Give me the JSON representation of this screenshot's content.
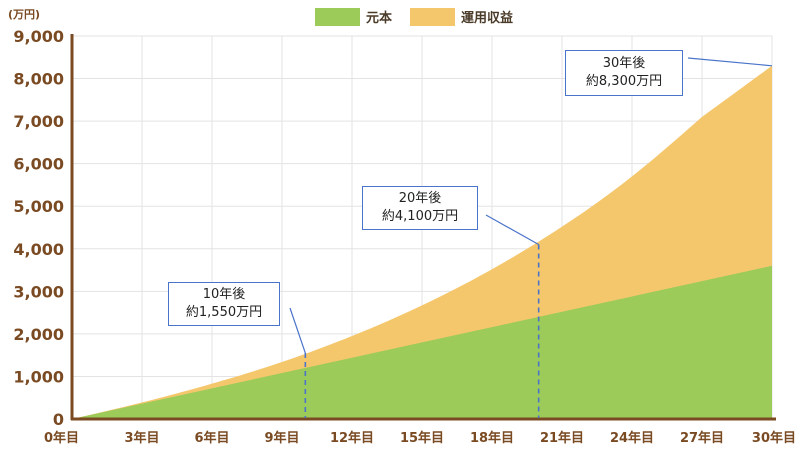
{
  "chart_data": {
    "type": "area",
    "unit_label": "(万円)",
    "categories": [
      "0年目",
      "3年目",
      "6年目",
      "9年目",
      "12年目",
      "15年目",
      "18年目",
      "21年目",
      "24年目",
      "27年目",
      "30年目"
    ],
    "x": [
      0,
      3,
      6,
      9,
      12,
      15,
      18,
      21,
      24,
      27,
      30
    ],
    "ylim": [
      0,
      9000
    ],
    "yticks": [
      0,
      1000,
      2000,
      3000,
      4000,
      5000,
      6000,
      7000,
      8000,
      9000
    ],
    "ytick_labels": [
      "0",
      "1,000",
      "2,000",
      "3,000",
      "4,000",
      "5,000",
      "6,000",
      "7,000",
      "8,000",
      "9,000"
    ],
    "legend_position": "top-center",
    "grid": true,
    "series": [
      {
        "name": "元本",
        "color": "#9ccb5a",
        "values": [
          0,
          360,
          720,
          1080,
          1440,
          1800,
          2160,
          2520,
          2880,
          3240,
          3600
        ]
      },
      {
        "name": "運用収益",
        "color": "#f5c76c",
        "total_values": [
          0,
          390,
          830,
          1340,
          1950,
          2670,
          3520,
          4520,
          5700,
          7100,
          8300
        ]
      }
    ],
    "annotations": [
      {
        "x": 10,
        "y": 1550,
        "line1": "10年後",
        "line2": "約1,550万円",
        "dashed": true
      },
      {
        "x": 20,
        "y": 4100,
        "line1": "20年後",
        "line2": "約4,100万円",
        "dashed": true
      },
      {
        "x": 30,
        "y": 8300,
        "line1": "30年後",
        "line2": "約8,300万円",
        "dashed": false
      }
    ],
    "axis_color": "#7a4a22",
    "grid_color": "#e3e3e3",
    "callout_border_color": "#4a74c9"
  }
}
